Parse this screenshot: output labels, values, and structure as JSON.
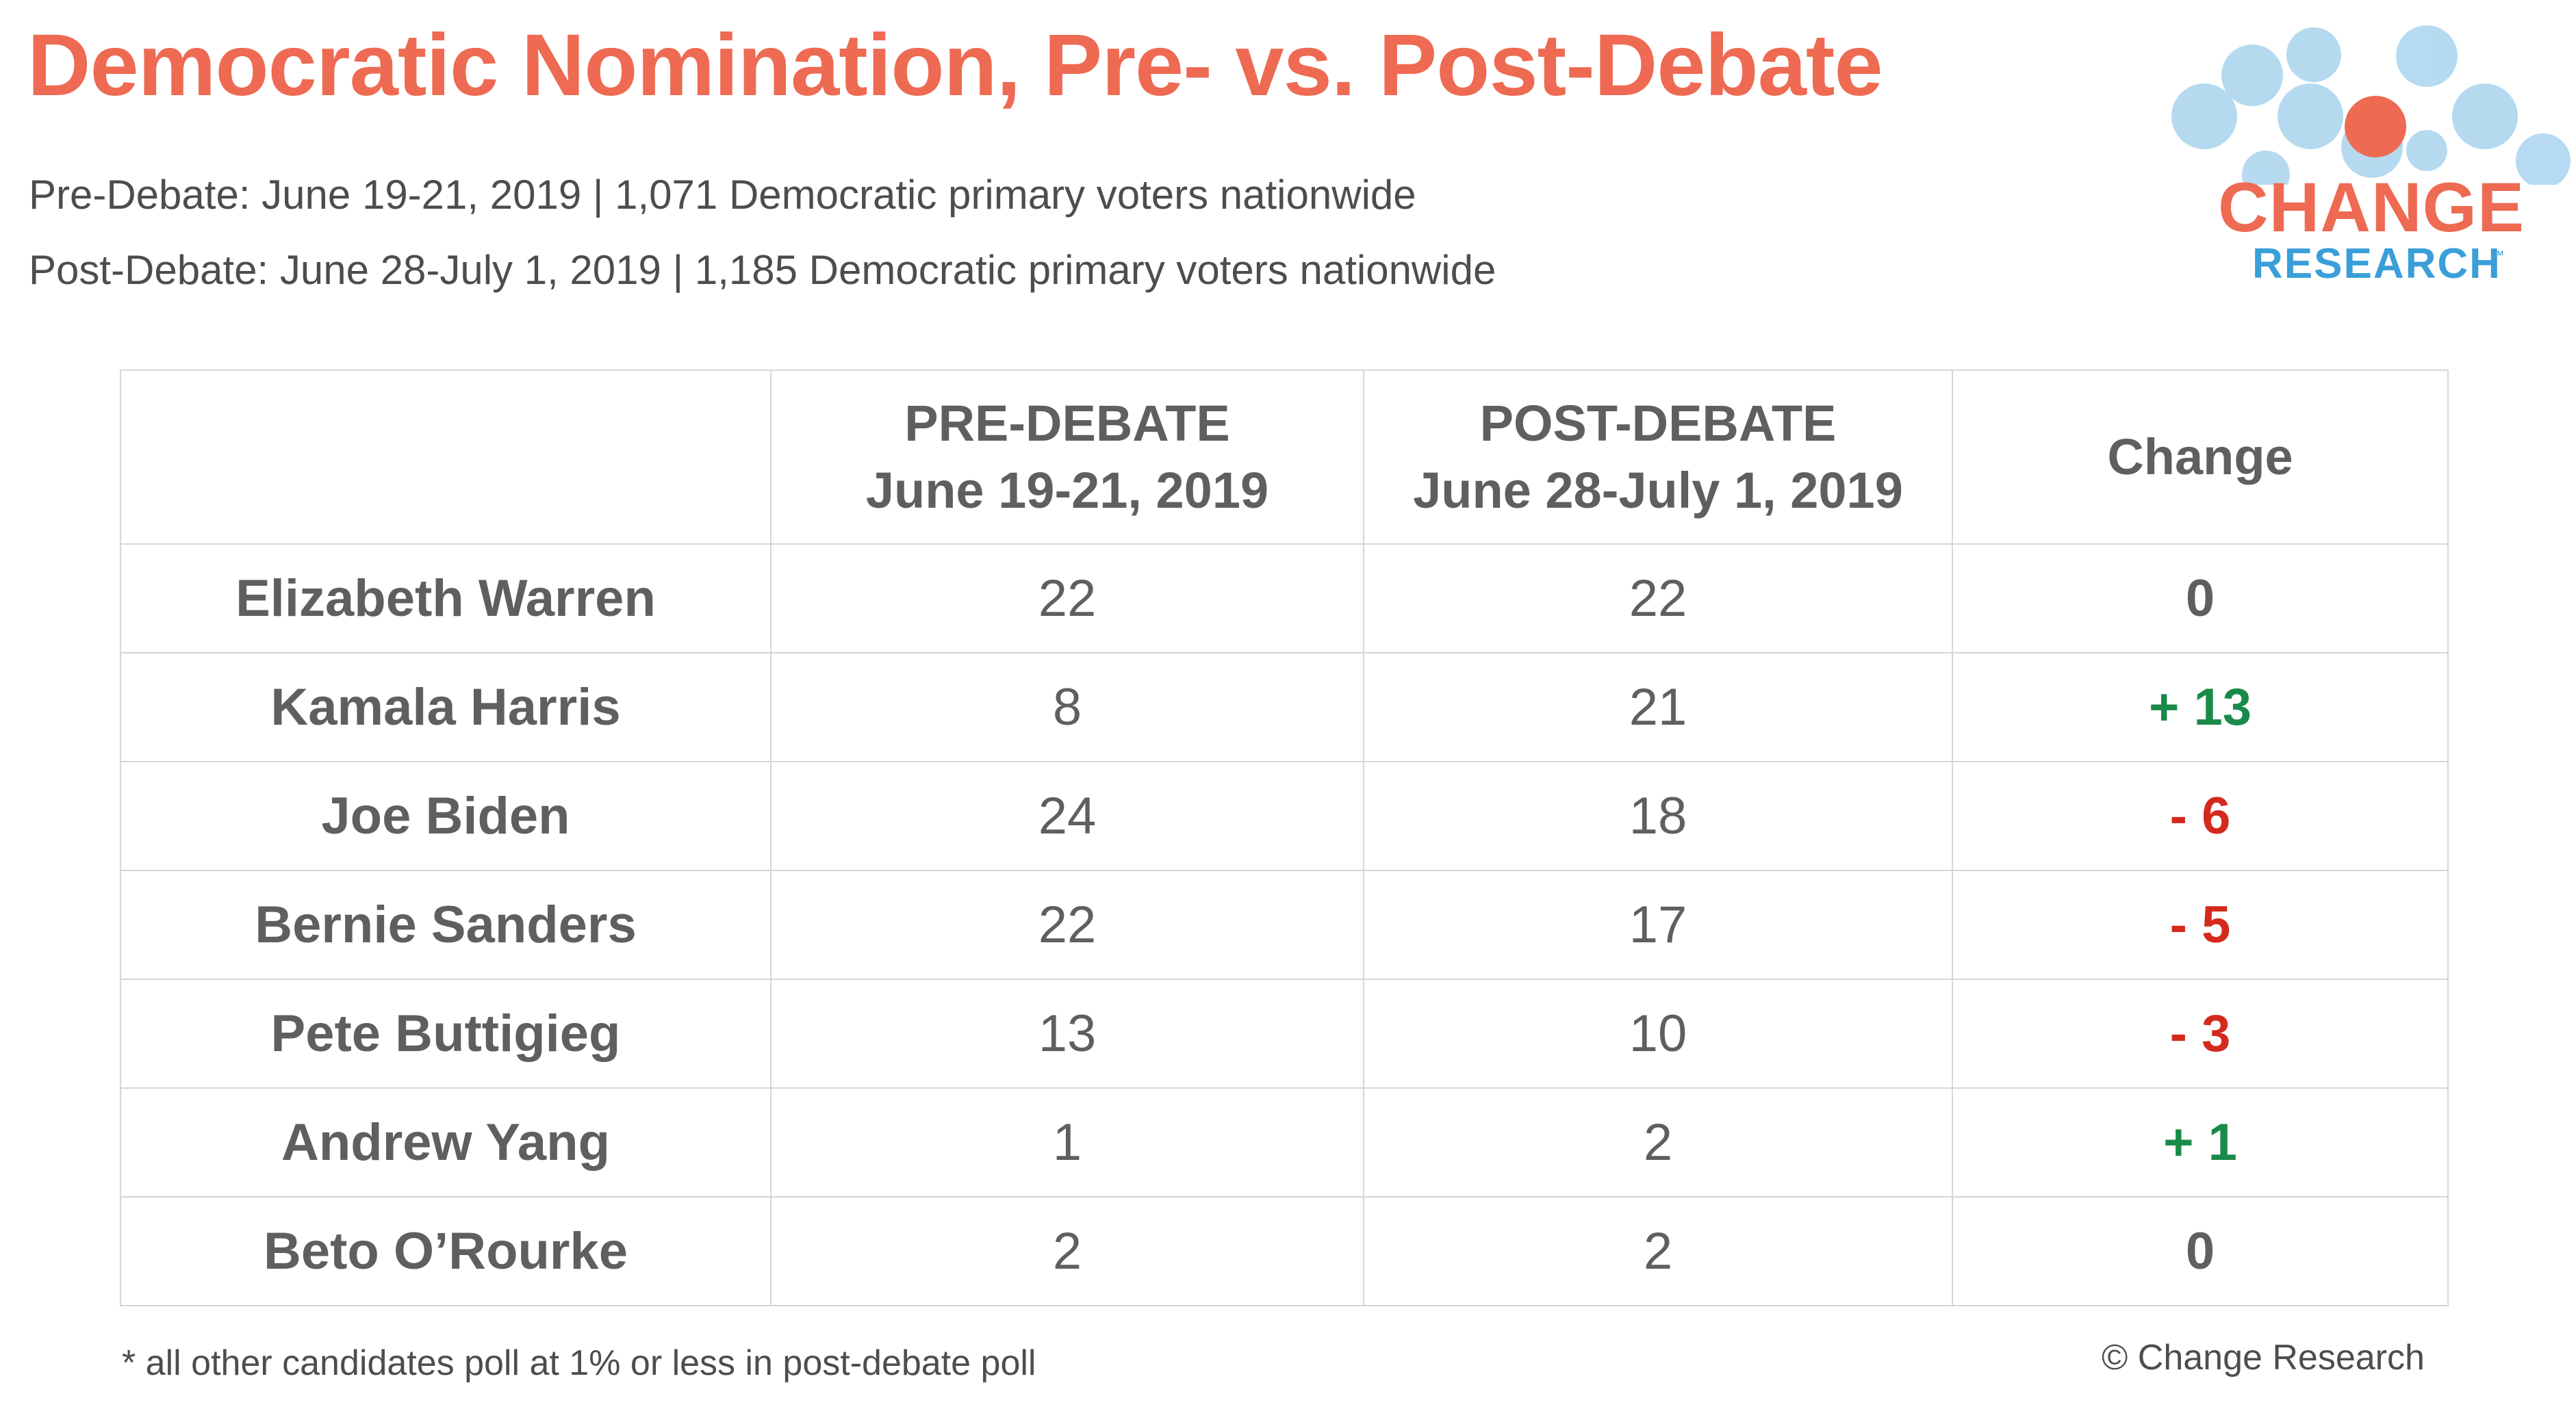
{
  "title": "Democratic Nomination, Pre- vs. Post-Debate",
  "subtitles": [
    "Pre-Debate: June 19-21, 2019 | 1,071 Democratic primary voters nationwide",
    "Post-Debate: June 28-July 1, 2019 | 1,185 Democratic primary voters nationwide"
  ],
  "logo": {
    "word": "CHANGE",
    "sub": "RESEARCH",
    "tm": "™"
  },
  "colors": {
    "title": "#ee6a52",
    "positive": "#1a8a4a",
    "negative": "#d42a1e",
    "neutral": "#5f5f5f",
    "logo_blue": "#3a9fd8"
  },
  "chart_data": {
    "type": "table",
    "columns": [
      {
        "key": "candidate",
        "lines": [
          ""
        ]
      },
      {
        "key": "pre",
        "lines": [
          "PRE-DEBATE",
          "June 19-21, 2019"
        ]
      },
      {
        "key": "post",
        "lines": [
          "POST-DEBATE",
          "June 28-July 1, 2019"
        ]
      },
      {
        "key": "change",
        "lines": [
          "Change"
        ]
      }
    ],
    "rows": [
      {
        "candidate": "Elizabeth Warren",
        "pre": "22",
        "post": "22",
        "change": "0",
        "direction": "neutral"
      },
      {
        "candidate": "Kamala Harris",
        "pre": "8",
        "post": "21",
        "change": "+ 13",
        "direction": "up"
      },
      {
        "candidate": "Joe Biden",
        "pre": "24",
        "post": "18",
        "change": "- 6",
        "direction": "down"
      },
      {
        "candidate": "Bernie Sanders",
        "pre": "22",
        "post": "17",
        "change": "- 5",
        "direction": "down"
      },
      {
        "candidate": "Pete Buttigieg",
        "pre": "13",
        "post": "10",
        "change": "- 3",
        "direction": "down"
      },
      {
        "candidate": "Andrew Yang",
        "pre": "1",
        "post": "2",
        "change": "+ 1",
        "direction": "up"
      },
      {
        "candidate": "Beto O’Rourke",
        "pre": "2",
        "post": "2",
        "change": "0",
        "direction": "neutral"
      }
    ]
  },
  "footnote": "* all other candidates poll at 1% or less in post-debate poll",
  "copyright": "© Change Research"
}
